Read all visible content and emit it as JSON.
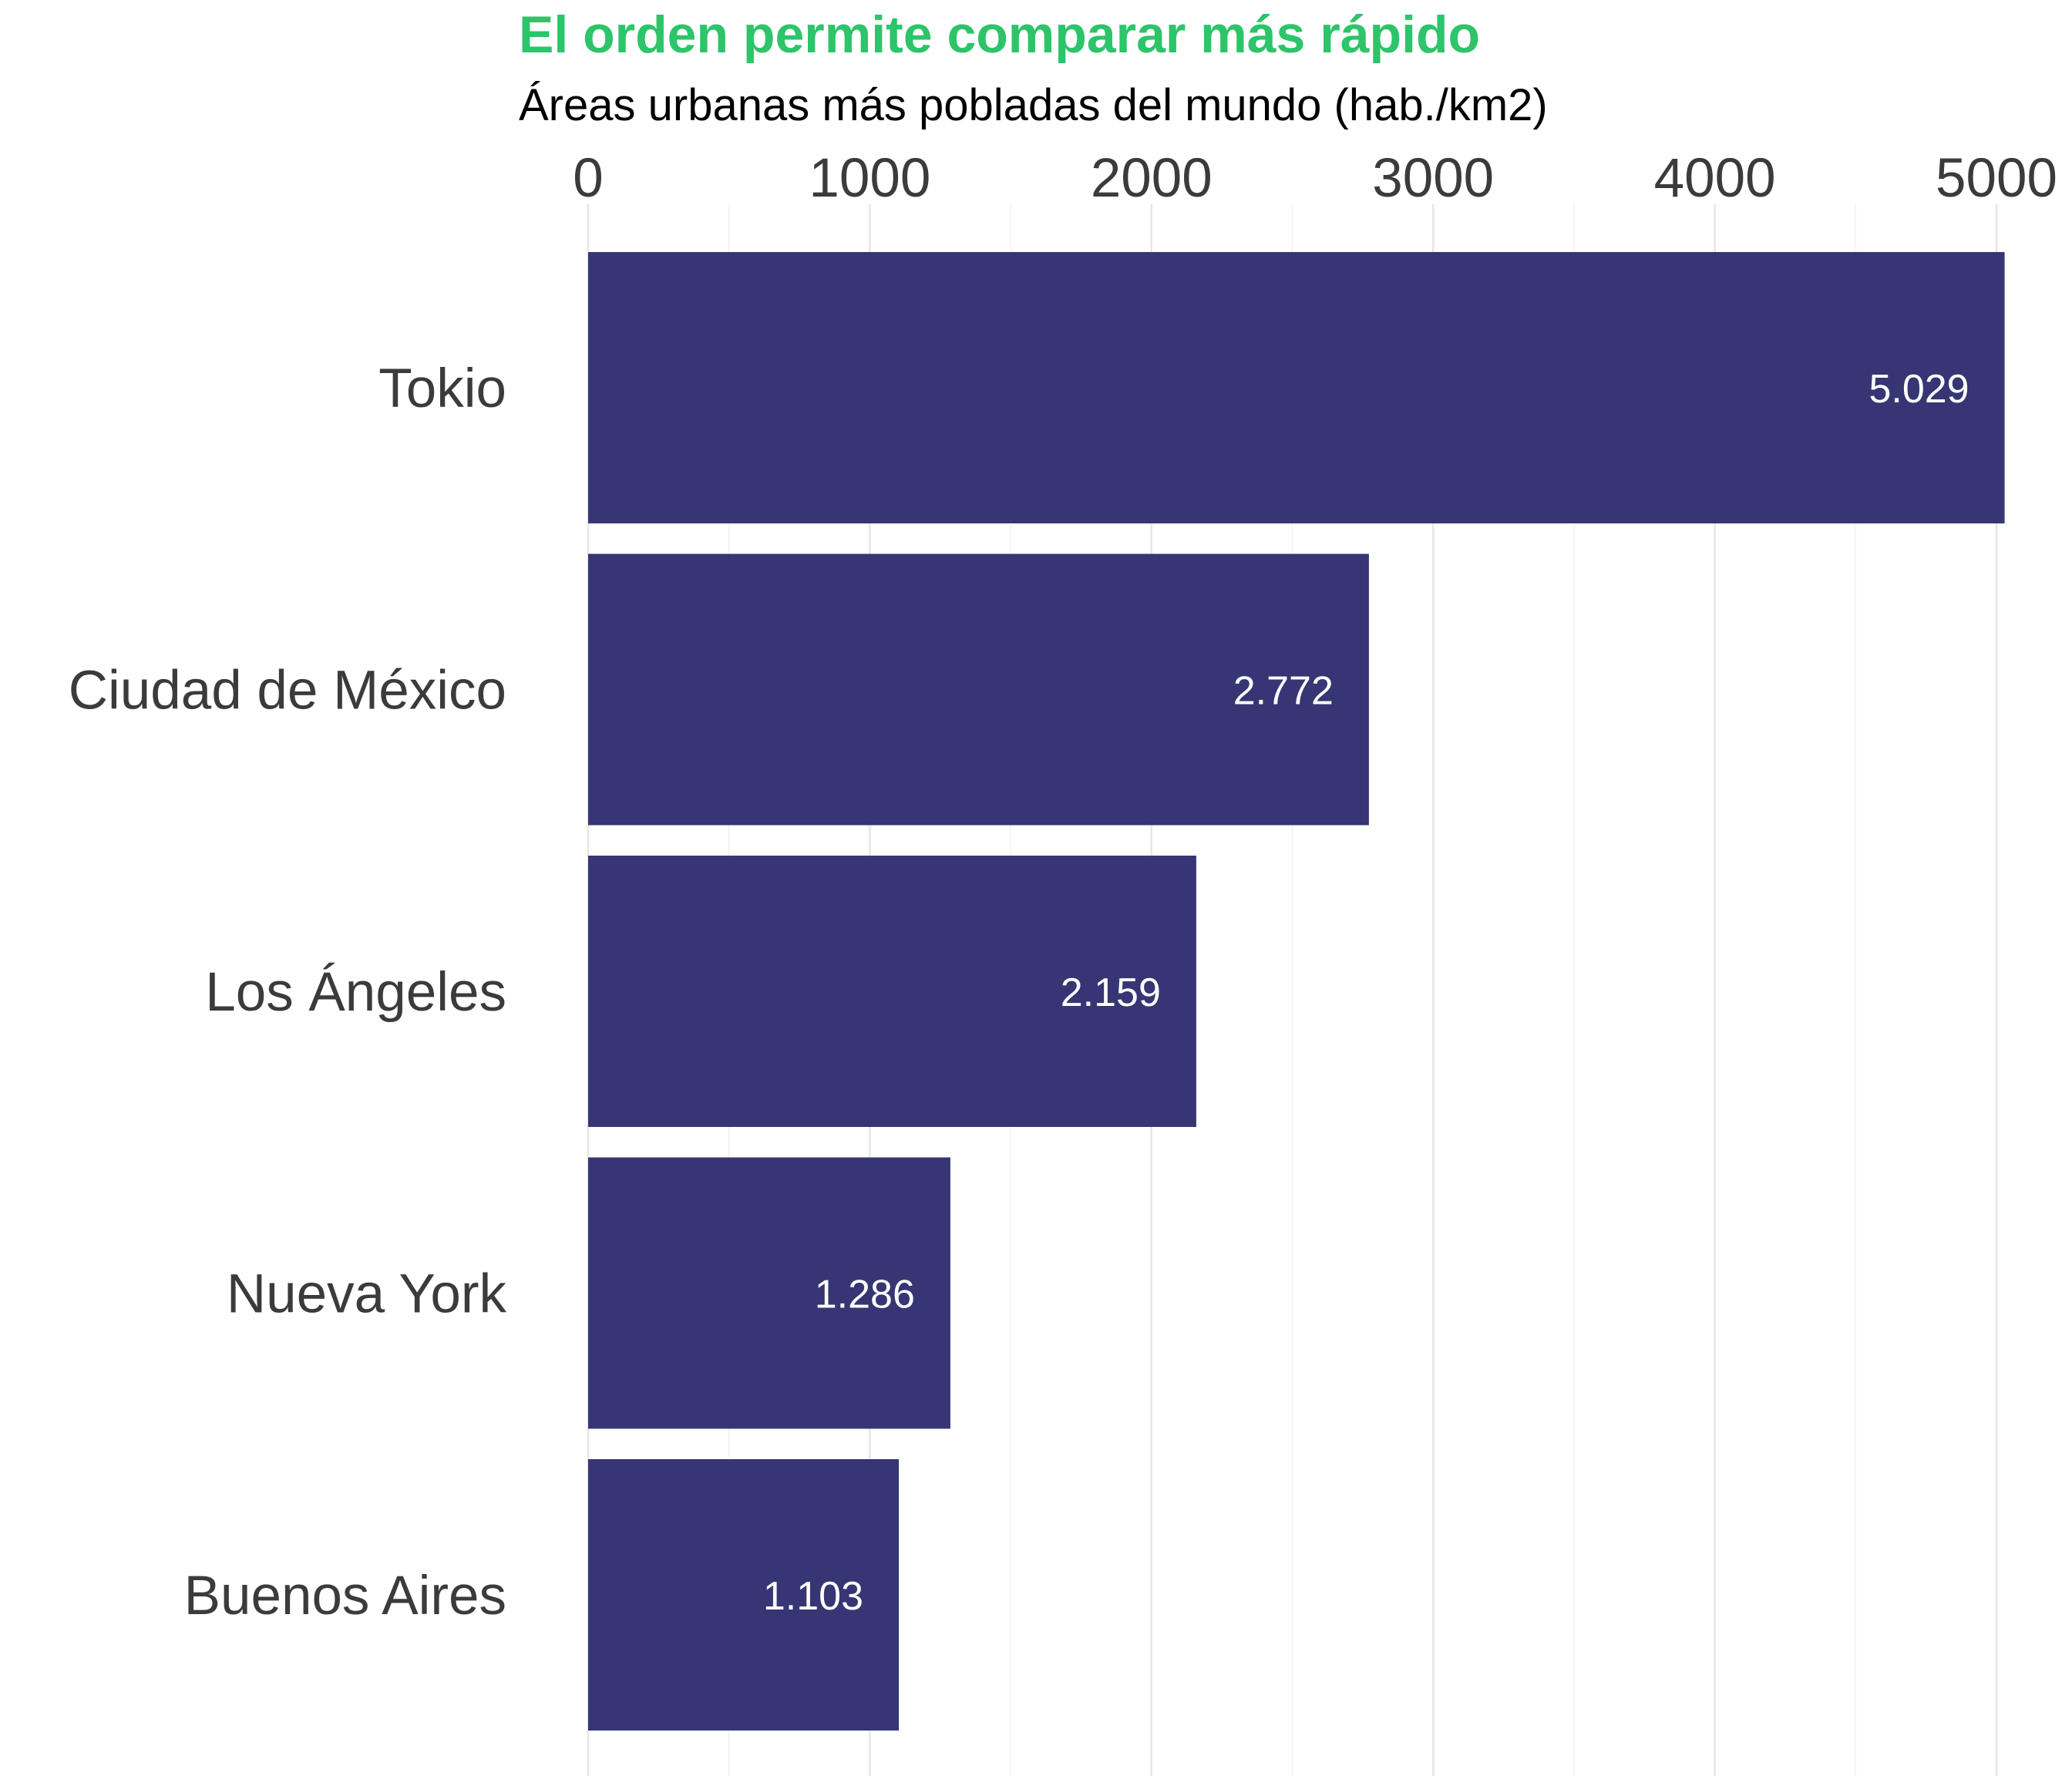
{
  "chart_data": {
    "type": "bar",
    "orientation": "horizontal",
    "title": "El orden permite comparar más rápido",
    "subtitle": "Áreas urbanas más pobladas del mundo (hab./km2)",
    "categories": [
      "Tokio",
      "Ciudad de México",
      "Los Ángeles",
      "Nueva York",
      "Buenos Aires"
    ],
    "values": [
      5029,
      2772,
      2159,
      1286,
      1103
    ],
    "value_labels": [
      "5.029",
      "2.772",
      "2.159",
      "1.286",
      "1.103"
    ],
    "xlim": [
      0,
      5000
    ],
    "xticks": [
      0,
      1000,
      2000,
      3000,
      4000,
      5000
    ],
    "xtick_labels": [
      "0",
      "1000",
      "2000",
      "3000",
      "4000",
      "5000"
    ],
    "xaxis_position": "top",
    "grid": true,
    "legend": "none",
    "colors": {
      "bar": "#363674",
      "title": "#2dc46a",
      "value_label": "#ffffff",
      "tick": "#3b3b3b"
    }
  }
}
